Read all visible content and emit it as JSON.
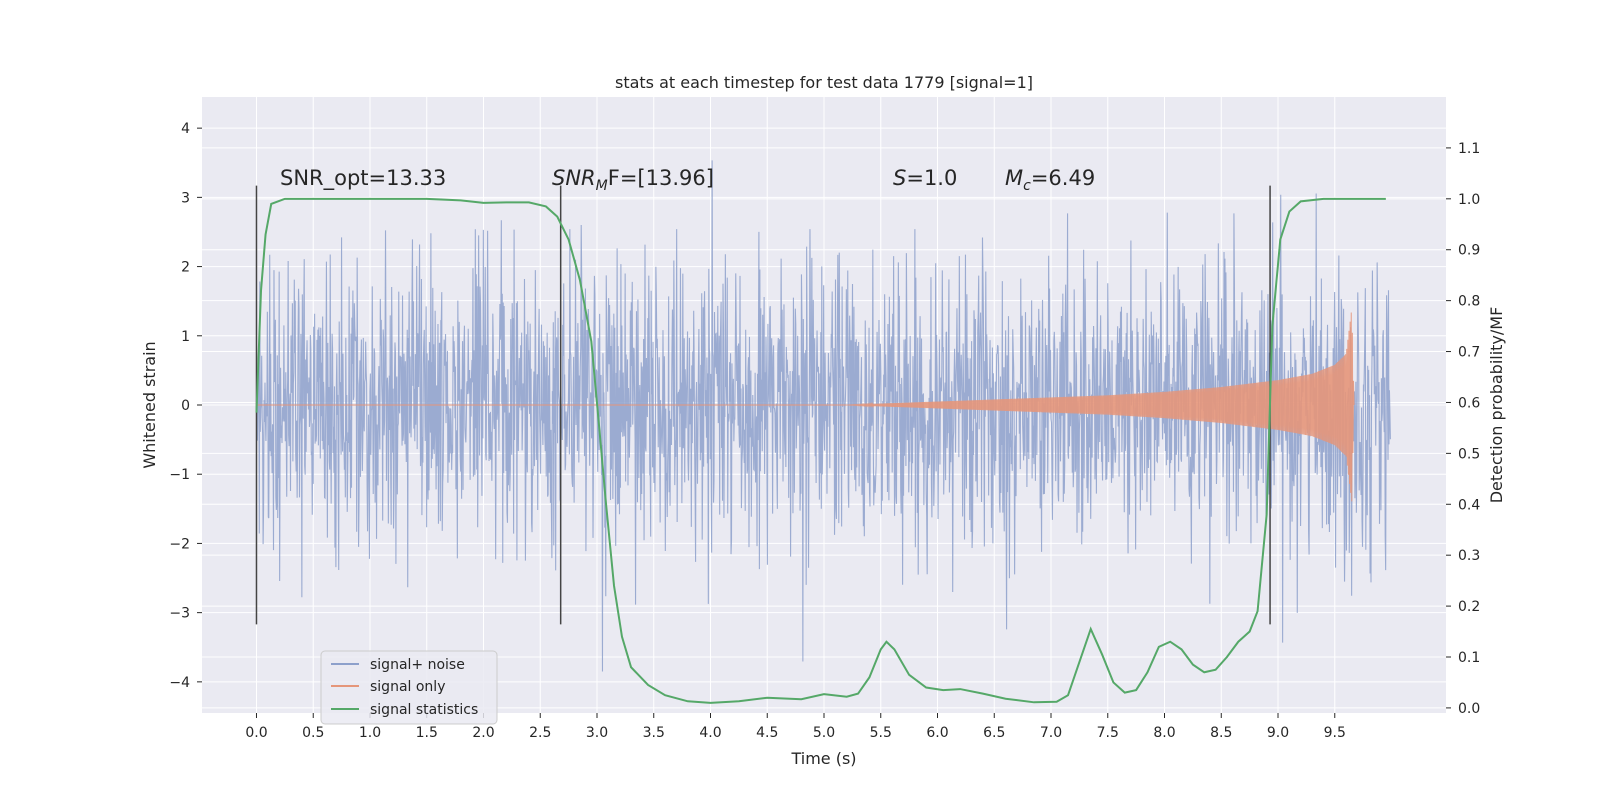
{
  "chart_data": {
    "type": "line",
    "title": "stats at each timestep for test data 1779 [signal=1]",
    "xlabel": "Time (s)",
    "ylabel": "Whitened strain",
    "y2label": "Detection probability/MF",
    "xlim": [
      -0.48,
      10.48
    ],
    "ylim": [
      -4.45,
      4.45
    ],
    "y2lim": [
      -0.01,
      1.2
    ],
    "xticks": [
      0.0,
      0.5,
      1.0,
      1.5,
      2.0,
      2.5,
      3.0,
      3.5,
      4.0,
      4.5,
      5.0,
      5.5,
      6.0,
      6.5,
      7.0,
      7.5,
      8.0,
      8.5,
      9.0,
      9.5
    ],
    "xtick_labels": [
      "0.0",
      "0.5",
      "1.0",
      "1.5",
      "2.0",
      "2.5",
      "3.0",
      "3.5",
      "4.0",
      "4.5",
      "5.0",
      "5.5",
      "6.0",
      "6.5",
      "7.0",
      "7.5",
      "8.0",
      "8.5",
      "9.0",
      "9.5"
    ],
    "yticks": [
      -4,
      -3,
      -2,
      -1,
      0,
      1,
      2,
      3,
      4
    ],
    "ytick_labels": [
      "−4",
      "−3",
      "−2",
      "−1",
      "0",
      "1",
      "2",
      "3",
      "4"
    ],
    "y2ticks": [
      0.0,
      0.1,
      0.2,
      0.3,
      0.4,
      0.5,
      0.6,
      0.7,
      0.8,
      0.9,
      1.0,
      1.1
    ],
    "y2tick_labels": [
      "0.0",
      "0.1",
      "0.2",
      "0.3",
      "0.4",
      "0.5",
      "0.6",
      "0.7",
      "0.8",
      "0.9",
      "1.0",
      "1.1"
    ],
    "grid": true,
    "legend_placement": "lower-left",
    "annotations": {
      "snr_opt": "SNR_opt=13.33",
      "snr_mf_main": "SNR",
      "snr_mf_sub": "M",
      "snr_mf_rest": "F=[13.96]",
      "s_var": "S",
      "s_rest": "=1.0",
      "mc_main": "M",
      "mc_sub": "c",
      "mc_rest": "=6.49"
    },
    "vlines_x": [
      0.0,
      2.68,
      8.93
    ],
    "vlines_yrange": [
      -3.17,
      3.17
    ],
    "series": [
      {
        "name": "signal+ noise",
        "color": "#8da0cb",
        "noise_std": 1.0,
        "x_range": [
          0.0,
          9.99
        ]
      },
      {
        "name": "signal only",
        "color": "#e5967a",
        "envelope": [
          [
            5.2,
            0.0
          ],
          [
            5.5,
            0.02
          ],
          [
            6.0,
            0.05
          ],
          [
            6.5,
            0.08
          ],
          [
            7.0,
            0.11
          ],
          [
            7.5,
            0.14
          ],
          [
            8.0,
            0.19
          ],
          [
            8.5,
            0.26
          ],
          [
            9.0,
            0.36
          ],
          [
            9.3,
            0.45
          ],
          [
            9.5,
            0.58
          ],
          [
            9.6,
            0.74
          ],
          [
            9.65,
            1.4
          ],
          [
            9.67,
            0.0
          ]
        ]
      },
      {
        "name": "signal statistics",
        "color": "#55a868",
        "points": [
          [
            0.0,
            0.58
          ],
          [
            0.04,
            0.82
          ],
          [
            0.08,
            0.93
          ],
          [
            0.13,
            0.99
          ],
          [
            0.25,
            1.0
          ],
          [
            0.5,
            1.0
          ],
          [
            1.0,
            1.0
          ],
          [
            1.5,
            1.0
          ],
          [
            1.8,
            0.997
          ],
          [
            2.0,
            0.992
          ],
          [
            2.2,
            0.993
          ],
          [
            2.4,
            0.993
          ],
          [
            2.55,
            0.985
          ],
          [
            2.65,
            0.965
          ],
          [
            2.75,
            0.92
          ],
          [
            2.85,
            0.84
          ],
          [
            2.95,
            0.72
          ],
          [
            3.02,
            0.55
          ],
          [
            3.08,
            0.4
          ],
          [
            3.15,
            0.24
          ],
          [
            3.22,
            0.14
          ],
          [
            3.3,
            0.08
          ],
          [
            3.45,
            0.045
          ],
          [
            3.6,
            0.025
          ],
          [
            3.8,
            0.013
          ],
          [
            4.0,
            0.01
          ],
          [
            4.25,
            0.013
          ],
          [
            4.5,
            0.02
          ],
          [
            4.8,
            0.017
          ],
          [
            5.0,
            0.027
          ],
          [
            5.2,
            0.022
          ],
          [
            5.3,
            0.028
          ],
          [
            5.4,
            0.06
          ],
          [
            5.5,
            0.115
          ],
          [
            5.55,
            0.13
          ],
          [
            5.62,
            0.115
          ],
          [
            5.75,
            0.065
          ],
          [
            5.9,
            0.04
          ],
          [
            6.05,
            0.035
          ],
          [
            6.2,
            0.037
          ],
          [
            6.4,
            0.028
          ],
          [
            6.6,
            0.018
          ],
          [
            6.85,
            0.011
          ],
          [
            7.05,
            0.012
          ],
          [
            7.15,
            0.025
          ],
          [
            7.25,
            0.09
          ],
          [
            7.35,
            0.155
          ],
          [
            7.45,
            0.105
          ],
          [
            7.55,
            0.05
          ],
          [
            7.65,
            0.03
          ],
          [
            7.75,
            0.035
          ],
          [
            7.85,
            0.07
          ],
          [
            7.95,
            0.12
          ],
          [
            8.05,
            0.13
          ],
          [
            8.15,
            0.115
          ],
          [
            8.25,
            0.085
          ],
          [
            8.35,
            0.07
          ],
          [
            8.45,
            0.075
          ],
          [
            8.55,
            0.1
          ],
          [
            8.65,
            0.13
          ],
          [
            8.75,
            0.15
          ],
          [
            8.82,
            0.19
          ],
          [
            8.9,
            0.38
          ],
          [
            8.95,
            0.75
          ],
          [
            9.02,
            0.92
          ],
          [
            9.1,
            0.975
          ],
          [
            9.2,
            0.995
          ],
          [
            9.4,
            1.0
          ],
          [
            9.7,
            1.0
          ],
          [
            9.95,
            1.0
          ]
        ]
      }
    ]
  }
}
